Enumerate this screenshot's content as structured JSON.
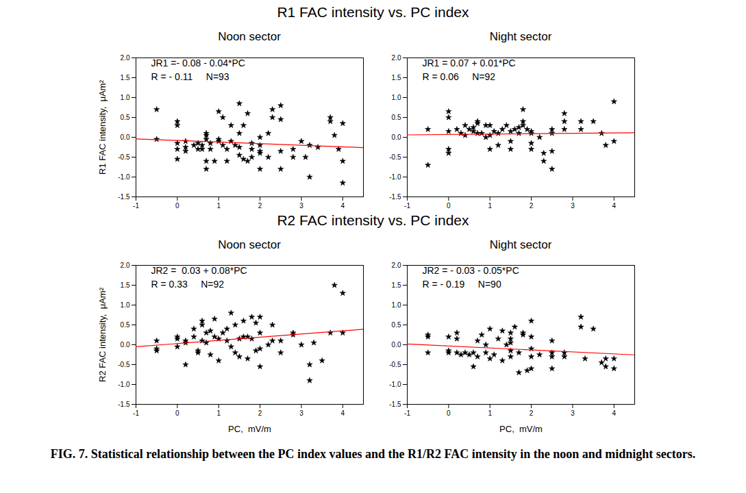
{
  "row_titles": [
    "R1 FAC intensity  vs.  PC index",
    "R2 FAC intensity  vs.  PC index"
  ],
  "caption": "FIG. 7.  Statistical relationship between the PC index values and the R1/R2 FAC intensity in the noon and midnight sectors.",
  "chart_data": [
    {
      "type": "scatter",
      "title": "Noon sector",
      "ylabel": "R1 FAC intensity,  μAm²",
      "x": [
        -0.5,
        -0.5,
        0,
        0,
        0,
        0,
        0,
        0.2,
        0.2,
        0.2,
        0.4,
        0.5,
        0.5,
        0.6,
        0.6,
        0.7,
        0.7,
        0.7,
        0.7,
        0.7,
        0.8,
        0.8,
        0.9,
        1.0,
        1.0,
        1.0,
        1.1,
        1.1,
        1.2,
        1.2,
        1.3,
        1.3,
        1.4,
        1.5,
        1.5,
        1.5,
        1.5,
        1.6,
        1.6,
        1.7,
        1.7,
        1.8,
        1.8,
        1.8,
        2.0,
        2.0,
        2.0,
        2.0,
        2.0,
        2.2,
        2.2,
        2.3,
        2.3,
        2.5,
        2.5,
        2.5,
        2.5,
        2.8,
        2.8,
        3.0,
        3.1,
        3.2,
        3.2,
        3.4,
        3.7,
        3.7,
        3.8,
        3.9,
        4.0,
        4.0,
        4.0
      ],
      "values": [
        0.7,
        -0.05,
        0.4,
        0.3,
        -0.15,
        -0.3,
        -0.55,
        -0.25,
        -0.35,
        -0.1,
        -0.2,
        -0.15,
        -0.3,
        -0.2,
        -0.3,
        0.1,
        0.05,
        -0.05,
        -0.6,
        -0.8,
        -0.15,
        -0.3,
        -0.6,
        0.65,
        -0.05,
        -0.1,
        0.5,
        -0.2,
        -0.3,
        -0.6,
        -0.1,
        0.3,
        -0.2,
        0.85,
        0.1,
        -0.25,
        -0.45,
        -0.55,
        0.3,
        -0.6,
        0.6,
        -0.15,
        -0.3,
        -0.5,
        0.0,
        -0.2,
        -0.35,
        -0.4,
        -0.8,
        0.1,
        -0.5,
        0.5,
        0.7,
        0.8,
        0.45,
        -0.35,
        -0.8,
        -0.3,
        -0.5,
        -0.1,
        -0.5,
        -1.0,
        -0.2,
        -0.25,
        0.5,
        0.4,
        0.05,
        -0.3,
        0.35,
        -0.6,
        -1.15
      ],
      "color": "#000000",
      "marker": "star",
      "annotations": [
        "JR1 =- 0.08 - 0.04*PC",
        "R = - 0.11     N=93"
      ],
      "fit": {
        "type": "line",
        "color": "#ff0000",
        "x": [
          -1,
          4.5
        ],
        "values": [
          -0.04,
          -0.26
        ]
      },
      "xlim": [
        -1,
        4.5
      ],
      "xticks": [
        -1,
        0,
        1,
        2,
        3,
        4
      ],
      "ylim": [
        -1.5,
        2
      ],
      "yticks": [
        -1.5,
        {
          "value": -1,
          "label": "-1.0"
        },
        -0.5,
        {
          "value": 0,
          "label": "0.0"
        },
        0.5,
        {
          "value": 1,
          "label": "1.0"
        },
        1.5,
        {
          "value": 2,
          "label": "2.0"
        }
      ],
      "grid": false
    },
    {
      "type": "scatter",
      "title": "Night sector",
      "x": [
        -0.5,
        -0.5,
        0,
        0,
        0,
        0,
        0,
        0.2,
        0.3,
        0.4,
        0.4,
        0.5,
        0.6,
        0.6,
        0.7,
        0.7,
        0.7,
        0.8,
        0.9,
        0.9,
        1.0,
        1.0,
        1.0,
        1.1,
        1.2,
        1.2,
        1.3,
        1.4,
        1.5,
        1.5,
        1.5,
        1.6,
        1.7,
        1.7,
        1.8,
        1.8,
        1.8,
        1.9,
        2.0,
        2.0,
        2.0,
        2.0,
        2.2,
        2.3,
        2.3,
        2.5,
        2.5,
        2.5,
        2.5,
        2.8,
        2.8,
        2.8,
        3.2,
        3.2,
        3.5,
        3.7,
        3.8,
        4.0,
        4.0
      ],
      "values": [
        0.2,
        -0.7,
        0.65,
        0.5,
        0.15,
        -0.3,
        -0.4,
        0.2,
        0.1,
        0.3,
        0.05,
        0.2,
        0.15,
        0.25,
        0.35,
        0.4,
        0.1,
        0.1,
        0.0,
        0.3,
        0.3,
        0.05,
        -0.3,
        0.15,
        0.1,
        -0.2,
        0.2,
        0.3,
        0.15,
        -0.1,
        -0.3,
        0.2,
        0.25,
        0.1,
        0.7,
        0.4,
        0.3,
        0.2,
        0.15,
        0.1,
        -0.15,
        -0.3,
        0.0,
        -0.4,
        -0.6,
        0.1,
        0.2,
        -0.8,
        -0.35,
        0.6,
        0.4,
        0.2,
        0.4,
        0.2,
        0.4,
        0.1,
        -0.2,
        0.9,
        -0.1
      ],
      "color": "#000000",
      "marker": "star",
      "annotations": [
        "JR1 = 0.07 + 0.01*PC",
        "R = 0.06     N=92"
      ],
      "fit": {
        "type": "line",
        "color": "#ff0000",
        "x": [
          -1,
          4.5
        ],
        "values": [
          0.06,
          0.115
        ]
      },
      "xlim": [
        -1,
        4.5
      ],
      "xticks": [
        -1,
        0,
        1,
        2,
        3,
        4
      ],
      "ylim": [
        -1.5,
        2
      ],
      "yticks": [
        -1.5,
        {
          "value": -1,
          "label": "-1.0"
        },
        -0.5,
        {
          "value": 0,
          "label": "0.0"
        },
        0.5,
        {
          "value": 1,
          "label": "1.0"
        },
        1.5,
        {
          "value": 2,
          "label": "2.0"
        }
      ],
      "grid": false
    },
    {
      "type": "scatter",
      "title": "Noon sector",
      "xlabel": "PC,  mV/m",
      "ylabel": "R2 FAC intensity,  μAm²",
      "x": [
        -0.5,
        -0.5,
        -0.5,
        0,
        0,
        0,
        0.2,
        0.2,
        0.2,
        0.4,
        0.4,
        0.5,
        0.5,
        0.6,
        0.6,
        0.6,
        0.7,
        0.7,
        0.8,
        0.8,
        0.9,
        0.9,
        1.0,
        1.0,
        1.1,
        1.2,
        1.2,
        1.3,
        1.3,
        1.4,
        1.4,
        1.5,
        1.5,
        1.6,
        1.6,
        1.7,
        1.7,
        1.8,
        1.8,
        1.9,
        1.9,
        2.0,
        2.0,
        2.0,
        2.0,
        2.2,
        2.3,
        2.3,
        2.5,
        2.5,
        2.8,
        2.8,
        3.0,
        3.2,
        3.2,
        3.3,
        3.5,
        3.7,
        3.8,
        4.0,
        4.0
      ],
      "values": [
        0.1,
        -0.1,
        -0.15,
        0.2,
        0.15,
        -0.05,
        0.1,
        0.05,
        -0.5,
        0.4,
        0.2,
        -0.15,
        -0.2,
        0.5,
        0.6,
        0.1,
        0.3,
        0.05,
        0.35,
        -0.25,
        0.2,
        0.65,
        -0.4,
        0.15,
        0.3,
        0.4,
        0.1,
        0.8,
        -0.05,
        -0.2,
        0.5,
        0.15,
        -0.3,
        0.2,
        0.6,
        0.2,
        -0.35,
        0.7,
        0.15,
        0.55,
        -0.15,
        0.7,
        0.3,
        -0.55,
        -0.1,
        0.0,
        0.5,
        0.1,
        0.1,
        -0.2,
        0.3,
        0.25,
        0.0,
        -0.5,
        -0.9,
        0.05,
        -0.4,
        0.3,
        1.5,
        1.3,
        0.3
      ],
      "color": "#000000",
      "marker": "star",
      "annotations": [
        "JR2 =  0.03 + 0.08*PC",
        "R = 0.33     N=92"
      ],
      "fit": {
        "type": "line",
        "color": "#ff0000",
        "x": [
          -1,
          4.5
        ],
        "values": [
          -0.05,
          0.39
        ]
      },
      "xlim": [
        -1,
        4.5
      ],
      "xticks": [
        -1,
        0,
        1,
        2,
        3,
        4
      ],
      "ylim": [
        -1.5,
        2
      ],
      "yticks": [
        -1.5,
        {
          "value": -1,
          "label": "-1.0"
        },
        -0.5,
        {
          "value": 0,
          "label": "0.0"
        },
        0.5,
        {
          "value": 1,
          "label": "1.0"
        },
        1.5,
        {
          "value": 2,
          "label": "2.0"
        }
      ],
      "grid": false
    },
    {
      "type": "scatter",
      "title": "Night sector",
      "xlabel": "PC,  mV/m",
      "x": [
        -0.5,
        -0.5,
        -0.5,
        0,
        0,
        0,
        0.2,
        0.2,
        0.2,
        0.3,
        0.4,
        0.5,
        0.6,
        0.6,
        0.7,
        0.7,
        0.8,
        0.9,
        0.9,
        1.0,
        1.0,
        1.1,
        1.2,
        1.3,
        1.3,
        1.4,
        1.5,
        1.5,
        1.5,
        1.5,
        1.5,
        1.6,
        1.7,
        1.7,
        1.8,
        1.8,
        1.9,
        2.0,
        2.0,
        2.0,
        2.0,
        2.0,
        2.2,
        2.5,
        2.5,
        2.5,
        2.5,
        2.8,
        2.8,
        3.2,
        3.2,
        3.3,
        3.5,
        3.7,
        3.8,
        3.8,
        4.0,
        4.0
      ],
      "values": [
        0.25,
        0.2,
        -0.2,
        0.2,
        -0.15,
        -0.2,
        0.3,
        0.15,
        -0.2,
        -0.25,
        -0.2,
        -0.25,
        -0.2,
        -0.55,
        0.1,
        -0.3,
        0.25,
        0.0,
        -0.2,
        0.4,
        -0.35,
        -0.25,
        0.15,
        -0.4,
        0.35,
        0.0,
        0.3,
        0.15,
        0.05,
        -0.15,
        -0.3,
        0.45,
        -0.7,
        -0.2,
        0.3,
        0.25,
        -0.65,
        0.6,
        0.2,
        -0.1,
        -0.6,
        -0.3,
        -0.25,
        0.1,
        -0.2,
        -0.6,
        -0.3,
        -0.2,
        -0.3,
        0.7,
        0.45,
        -0.35,
        0.4,
        -0.45,
        -0.55,
        -0.35,
        -0.35,
        -0.6
      ],
      "color": "#000000",
      "marker": "star",
      "annotations": [
        "JR2 = - 0.03 - 0.05*PC",
        "R = - 0.19     N=90"
      ],
      "fit": {
        "type": "line",
        "color": "#ff0000",
        "x": [
          -1,
          4.5
        ],
        "values": [
          0.02,
          -0.255
        ]
      },
      "xlim": [
        -1,
        4.5
      ],
      "xticks": [
        -1,
        0,
        1,
        2,
        3,
        4
      ],
      "ylim": [
        -1.5,
        2
      ],
      "yticks": [
        -1.5,
        {
          "value": -1,
          "label": "-1.0"
        },
        -0.5,
        {
          "value": 0,
          "label": "0.0"
        },
        0.5,
        {
          "value": 1,
          "label": "1.0"
        },
        1.5,
        {
          "value": 2,
          "label": "2.0"
        }
      ],
      "grid": false
    }
  ]
}
